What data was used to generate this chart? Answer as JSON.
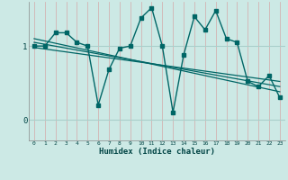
{
  "xlabel": "Humidex (Indice chaleur)",
  "background_color": "#cce9e5",
  "grid_color_h": "#b8d8d4",
  "grid_color_v": "#e8c8c8",
  "line_color": "#006666",
  "x_ticks": [
    0,
    1,
    2,
    3,
    4,
    5,
    6,
    7,
    8,
    9,
    10,
    11,
    12,
    13,
    14,
    15,
    16,
    17,
    18,
    19,
    20,
    21,
    22,
    23
  ],
  "y_ticks": [
    0,
    1
  ],
  "ylim": [
    -0.28,
    1.6
  ],
  "xlim": [
    -0.5,
    23.5
  ],
  "series1_x": [
    0,
    1,
    2,
    3,
    4,
    5,
    6,
    7,
    8,
    9,
    10,
    11,
    12,
    13,
    14,
    15,
    16,
    17,
    18,
    19,
    20,
    21,
    22,
    23
  ],
  "series1_y": [
    1.0,
    1.0,
    1.18,
    1.18,
    1.05,
    1.0,
    0.2,
    0.68,
    0.97,
    1.0,
    1.38,
    1.52,
    1.0,
    0.1,
    0.88,
    1.4,
    1.22,
    1.48,
    1.1,
    1.05,
    0.52,
    0.45,
    0.6,
    0.3
  ],
  "trend1_x": [
    0,
    23
  ],
  "trend1_y": [
    1.1,
    0.38
  ],
  "trend2_x": [
    0,
    23
  ],
  "trend2_y": [
    1.05,
    0.45
  ],
  "trend3_x": [
    0,
    23
  ],
  "trend3_y": [
    0.98,
    0.52
  ]
}
